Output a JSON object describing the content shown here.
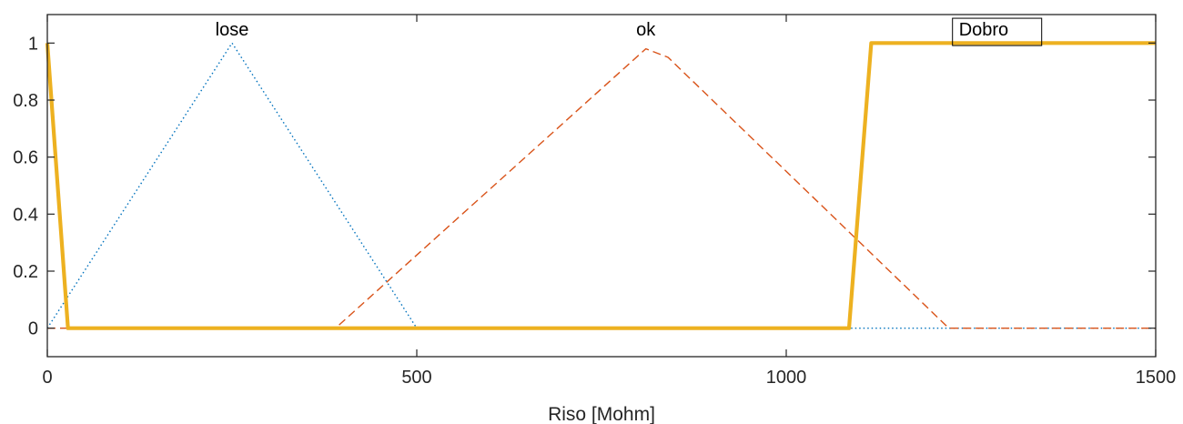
{
  "chart_data": {
    "type": "line",
    "xlabel": "Riso [Mohm]",
    "ylabel": "",
    "xlim": [
      0,
      1500
    ],
    "ylim": [
      -0.1,
      1.1
    ],
    "xticks": [
      0,
      500,
      1000,
      1500
    ],
    "xtick_labels": [
      "0",
      "500",
      "1000",
      "1500"
    ],
    "yticks": [
      0,
      0.2,
      0.4,
      0.6,
      0.8,
      1
    ],
    "ytick_labels": [
      "0",
      "0.2",
      "0.4",
      "0.6",
      "0.8",
      "1"
    ],
    "grid": false,
    "series": [
      {
        "name": "lose",
        "color": "#0072BD",
        "style": "dotted",
        "x": [
          0,
          250,
          500,
          1500
        ],
        "y": [
          0,
          1,
          0,
          0
        ]
      },
      {
        "name": "ok",
        "color": "#D95319",
        "style": "dashed",
        "x": [
          0,
          390,
          810,
          840,
          1220,
          1500
        ],
        "y": [
          0,
          0,
          0.98,
          0.95,
          0,
          0
        ]
      },
      {
        "name": "Dobro",
        "color": "#EDB120",
        "style": "solid",
        "x": [
          0,
          28,
          1085,
          1115,
          1500
        ],
        "y": [
          1,
          0,
          0,
          1,
          1
        ]
      }
    ],
    "annotations": [
      {
        "text": "lose",
        "x": 250,
        "y": 1.02,
        "boxed": false
      },
      {
        "text": "ok",
        "x": 810,
        "y": 1.02,
        "boxed": false
      },
      {
        "text": "Dobro",
        "x": 1225,
        "y": 1.02,
        "boxed": true
      }
    ]
  }
}
